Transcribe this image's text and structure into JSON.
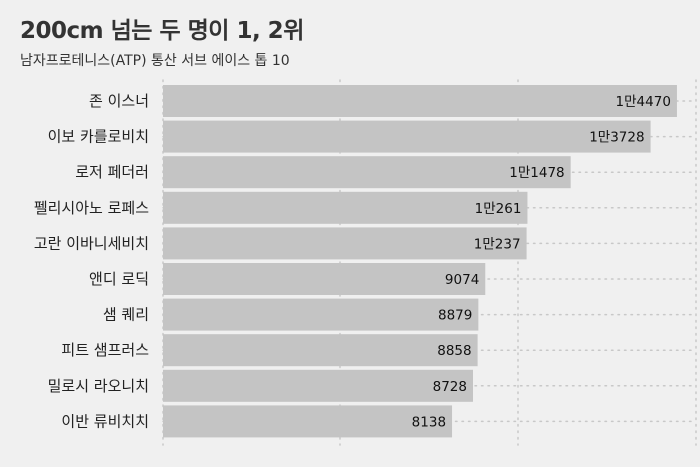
{
  "title": "200cm 넘는 두 명이 1, 2위",
  "subtitle": "남자프로테니스(ATP) 통산 서브 에이스 톱 10",
  "colors": {
    "background": "#f0f0f0",
    "bar": "#c4c4c4",
    "grid": "#c8c8c8"
  },
  "chart_data": {
    "type": "bar",
    "orientation": "horizontal",
    "categories": [
      "존 이스너",
      "이보 카를로비치",
      "로저 페더러",
      "펠리시아노 로페스",
      "고란 이바니세비치",
      "앤디 로딕",
      "샘 퀘리",
      "피트 샘프러스",
      "밀로시 라오니치",
      "이반 류비치치"
    ],
    "values": [
      14470,
      13728,
      11478,
      10261,
      10237,
      9074,
      8879,
      8858,
      8728,
      8138
    ],
    "value_labels": [
      "1만4470",
      "1만3728",
      "1만1478",
      "1만261",
      "1만237",
      "9074",
      "8879",
      "8858",
      "8728",
      "8138"
    ],
    "title": "200cm 넘는 두 명이 1, 2위",
    "subtitle": "남자프로테니스(ATP) 통산 서브 에이스 톱 10",
    "xlim": [
      0,
      14500
    ],
    "grid": true
  }
}
